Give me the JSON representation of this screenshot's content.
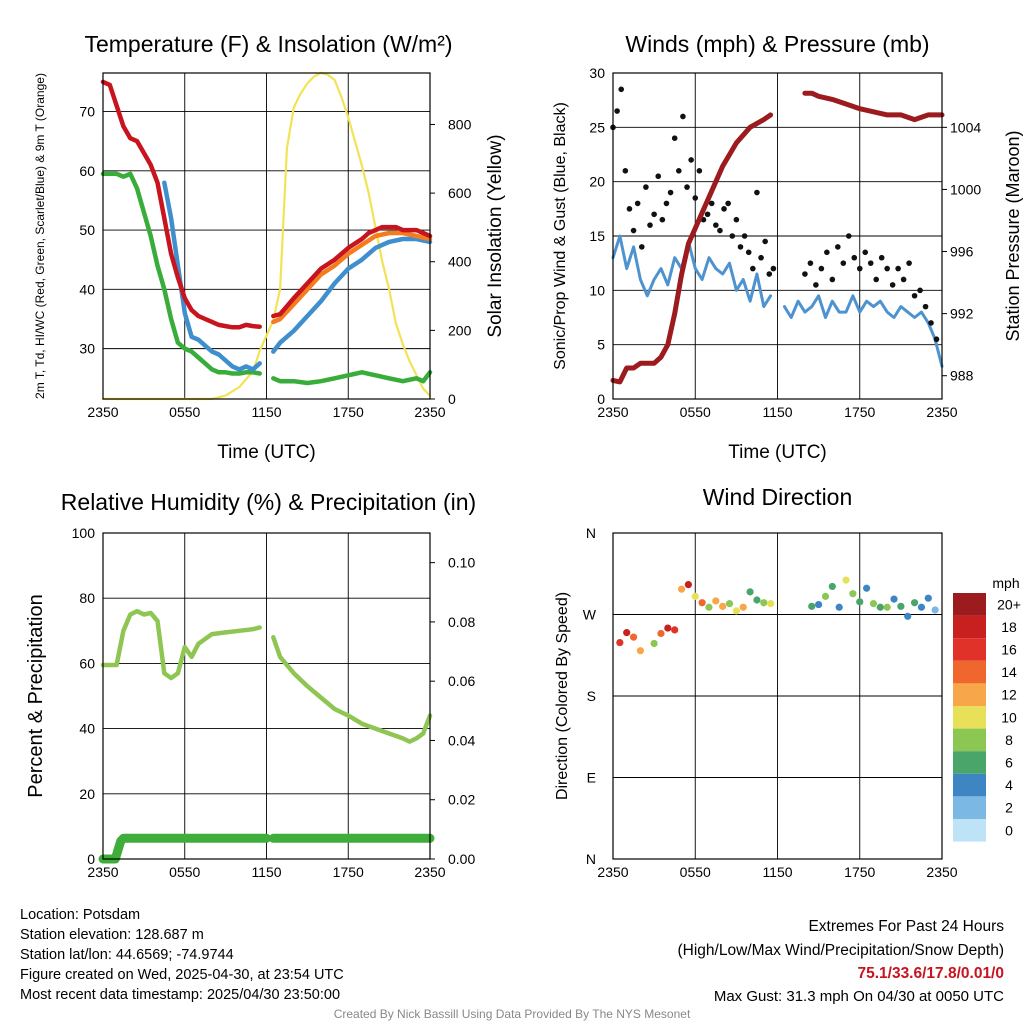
{
  "chart_data": [
    {
      "type": "line",
      "title": "Temperature (F) & Insolation (W/m²)",
      "xlabel": "Time (UTC)",
      "ylabel": "2m T, Td, HI/WC (Red, Green, Scarlet/Blue) & 9m T (Orange)",
      "ylabel2": "Solar Insolation (Yellow)",
      "xticks": [
        "2350",
        "0550",
        "1150",
        "1750",
        "2350"
      ],
      "ylim": [
        21.5,
        76.5
      ],
      "yticks": [
        30,
        40,
        50,
        60,
        70
      ],
      "y2lim": [
        0,
        950
      ],
      "y2ticks": [
        0,
        200,
        400,
        600,
        800
      ],
      "grid": true,
      "series": [
        {
          "name": "2m T",
          "color": "#c8141e",
          "axis": "left",
          "x": [
            0,
            0.5,
            1,
            1.5,
            2,
            2.5,
            3,
            3.5,
            4,
            4.5,
            5,
            5.5,
            6,
            6.5,
            7,
            7.5,
            8,
            8.5,
            9,
            9.5,
            10,
            10.5,
            11,
            11.5,
            12.5,
            13,
            14,
            15,
            16,
            17,
            18,
            19,
            19.5,
            20,
            20.5,
            21,
            21.5,
            22,
            22.5,
            23,
            23.5,
            24
          ],
          "y": [
            75,
            74.5,
            71,
            67.5,
            65.5,
            65,
            63,
            61,
            58,
            52,
            46,
            42,
            38.5,
            36.5,
            35.5,
            35,
            34.5,
            34,
            33.8,
            33.6,
            33.6,
            34,
            33.8,
            33.7,
            35.5,
            35.8,
            38.5,
            41,
            43.5,
            45,
            47,
            48.5,
            49.5,
            50,
            50.5,
            50.5,
            50.5,
            50,
            50,
            50,
            49.5,
            49
          ]
        },
        {
          "name": "9m T",
          "color": "#f57c1e",
          "axis": "left",
          "x": [
            12.5,
            13,
            14,
            15,
            16,
            17,
            18,
            19,
            20,
            21,
            22,
            23,
            24
          ],
          "y": [
            34.5,
            35,
            37.5,
            40,
            42.5,
            44,
            46,
            47.5,
            49,
            49.5,
            49.5,
            49,
            48.5
          ]
        },
        {
          "name": "WC",
          "color": "#3f8fcf",
          "axis": "left",
          "x": [
            4.5,
            5,
            5.5,
            6,
            6.5,
            7,
            7.5,
            8,
            8.5,
            9,
            9.5,
            10,
            10.5,
            11,
            11.5,
            12.5,
            13,
            14,
            15,
            16,
            17,
            18,
            19,
            20,
            21,
            22,
            23,
            24
          ],
          "y": [
            58,
            52,
            44,
            36,
            32,
            31.5,
            30.5,
            29.5,
            29,
            28,
            27,
            26.5,
            27,
            26.5,
            27.5,
            29.5,
            31,
            33,
            35.5,
            38,
            41,
            43.5,
            45,
            47,
            48,
            48.5,
            48.5,
            48
          ]
        },
        {
          "name": "Td",
          "color": "#38ad3a",
          "axis": "left",
          "x": [
            0,
            1,
            1.5,
            2,
            2.5,
            3,
            3.5,
            4,
            4.5,
            5,
            5.5,
            6,
            6.5,
            7,
            7.5,
            8,
            8.5,
            9,
            9.5,
            10,
            10.5,
            11,
            11.5,
            12.5,
            13,
            14,
            15,
            16,
            17,
            18,
            19,
            20,
            21,
            22,
            23,
            23.5,
            24
          ],
          "y": [
            59.5,
            59.5,
            59,
            59.5,
            57,
            53,
            49,
            44,
            40,
            35,
            31,
            30,
            29.5,
            28.5,
            27.5,
            26.5,
            26,
            26,
            25.8,
            25.8,
            26,
            26,
            25.8,
            25,
            24.5,
            24.5,
            24.2,
            24.5,
            25,
            25.5,
            26,
            25.5,
            25,
            24.5,
            25,
            24.5,
            26
          ]
        },
        {
          "name": "Solar Insolation",
          "color": "#f2e356",
          "axis": "right",
          "x": [
            0,
            4,
            8,
            9,
            10,
            11,
            11.5,
            12.5,
            13,
            13.5,
            14,
            14.5,
            15,
            15.5,
            16,
            16.5,
            17,
            17.5,
            18,
            18.5,
            19,
            19.5,
            20,
            20.5,
            21,
            21.5,
            22,
            22.5,
            23,
            23.5,
            24
          ],
          "y": [
            0,
            0,
            0,
            10,
            35,
            80,
            140,
            230,
            320,
            730,
            850,
            890,
            920,
            940,
            950,
            945,
            930,
            880,
            820,
            750,
            680,
            600,
            500,
            400,
            320,
            220,
            160,
            110,
            70,
            30,
            10
          ]
        }
      ]
    },
    {
      "type": "line",
      "title": "Winds (mph) & Pressure (mb)",
      "xlabel": "Time (UTC)",
      "ylabel": "Sonic/Prop Wind & Gust (Blue, Black)",
      "ylabel2": "Station Pressure (Maroon)",
      "xticks": [
        "2350",
        "0550",
        "1150",
        "1750",
        "2350"
      ],
      "ylim": [
        0,
        30
      ],
      "yticks": [
        0,
        5,
        10,
        15,
        20,
        25,
        30
      ],
      "y2lim": [
        986.5,
        1007.5
      ],
      "y2ticks": [
        988,
        992,
        996,
        1000,
        1004
      ],
      "grid": true,
      "series": [
        {
          "name": "Wind",
          "color": "#4e93cf",
          "axis": "left",
          "x": [
            0,
            0.5,
            1,
            1.5,
            2,
            2.5,
            3,
            3.5,
            4,
            4.5,
            5,
            5.5,
            6,
            6.5,
            7,
            7.5,
            8,
            8.5,
            9,
            9.5,
            10,
            10.5,
            11,
            11.5,
            12.5,
            13,
            13.5,
            14,
            14.5,
            15,
            15.5,
            16,
            16.5,
            17,
            17.5,
            18,
            18.5,
            19,
            19.5,
            20,
            20.5,
            21,
            21.5,
            22,
            22.5,
            23,
            23.5,
            24
          ],
          "y": [
            13,
            15,
            12,
            14,
            11,
            9.5,
            11,
            12,
            10.5,
            13,
            12,
            14.5,
            12,
            11,
            13,
            12,
            11.5,
            12.5,
            10,
            11,
            9,
            11.5,
            8.5,
            9.5,
            8.5,
            7.5,
            9,
            8,
            8.5,
            9.5,
            7.5,
            9,
            8,
            8,
            9.5,
            8,
            9,
            8.5,
            9,
            8,
            7.5,
            8.5,
            8,
            7.5,
            8,
            7,
            5.5,
            3
          ]
        },
        {
          "name": "Station Pressure",
          "color": "#9b1b1f",
          "axis": "right",
          "x": [
            0,
            0.5,
            1,
            1.5,
            2,
            3,
            3.5,
            4,
            4.5,
            5,
            5.5,
            6,
            6.5,
            7,
            8,
            9,
            10,
            11,
            11.5,
            14,
            14.5,
            15,
            16,
            17,
            18,
            19,
            20,
            21,
            22,
            23,
            24
          ],
          "y": [
            987.7,
            987.6,
            988.5,
            988.5,
            988.8,
            988.8,
            989.2,
            990,
            992,
            994.5,
            996.5,
            997.5,
            998.5,
            999.5,
            1001.5,
            1003,
            1004,
            1004.5,
            1004.8,
            1006.2,
            1006.2,
            1006,
            1005.8,
            1005.5,
            1005.2,
            1005,
            1004.8,
            1004.8,
            1004.5,
            1004.8,
            1004.8
          ]
        },
        {
          "name": "Gust",
          "color": "#111111",
          "axis": "left",
          "kind": "scatter",
          "x": [
            0,
            0.3,
            0.6,
            0.9,
            1.2,
            1.5,
            1.8,
            2.1,
            2.4,
            2.7,
            3,
            3.3,
            3.6,
            3.9,
            4.2,
            4.5,
            4.8,
            5.1,
            5.4,
            5.7,
            6,
            6.3,
            6.6,
            6.9,
            7.2,
            7.5,
            7.8,
            8.1,
            8.4,
            8.7,
            9,
            9.3,
            9.6,
            9.9,
            10.2,
            10.5,
            10.8,
            11.1,
            11.4,
            11.7,
            14,
            14.4,
            14.8,
            15.2,
            15.6,
            16,
            16.4,
            16.8,
            17.2,
            17.6,
            18,
            18.4,
            18.8,
            19.2,
            19.6,
            20,
            20.4,
            20.8,
            21.2,
            21.6,
            22,
            22.4,
            22.8,
            23.2,
            23.6
          ],
          "y": [
            25,
            26.5,
            28.5,
            21,
            17.5,
            15.5,
            18,
            14,
            19.5,
            16,
            17,
            20.5,
            16.5,
            18,
            19,
            24,
            21,
            26,
            19.5,
            22,
            18.5,
            21,
            16.5,
            17,
            18,
            16,
            15.5,
            17.5,
            18,
            15,
            16.5,
            14,
            15,
            13.5,
            12,
            19,
            13,
            14.5,
            11.5,
            12,
            11.5,
            12.5,
            10.5,
            12,
            13.5,
            11,
            14,
            12.5,
            15,
            13,
            12,
            13.5,
            12.5,
            11,
            13,
            12,
            10.5,
            12,
            11,
            12.5,
            9.5,
            10,
            8.5,
            7,
            5.5
          ]
        }
      ]
    },
    {
      "type": "line",
      "title": "Relative Humidity (%) & Precipitation (in)",
      "xlabel": "",
      "ylabel": "Percent & Precipitation",
      "xticks": [
        "2350",
        "0550",
        "1150",
        "1750",
        "2350"
      ],
      "ylim": [
        0,
        100
      ],
      "yticks": [
        0,
        20,
        40,
        60,
        80,
        100
      ],
      "y2lim": [
        0,
        0.11
      ],
      "y2ticks": [
        "0.00",
        "0.02",
        "0.04",
        "0.06",
        "0.08",
        "0.10"
      ],
      "grid": true,
      "series": [
        {
          "name": "RH",
          "color": "#8fc653",
          "axis": "left",
          "x": [
            0,
            0.5,
            1,
            1.5,
            2,
            2.5,
            3,
            3.5,
            4,
            4.5,
            5,
            5.5,
            6,
            6.5,
            7,
            8,
            9,
            10,
            11,
            11.5,
            12.5,
            13,
            14,
            15,
            16,
            17,
            18,
            19,
            20,
            21,
            22,
            22.5,
            23,
            23.5,
            24
          ],
          "y": [
            59.5,
            59.5,
            59.5,
            70,
            75,
            76,
            75,
            75.5,
            73,
            57,
            55.5,
            57,
            65,
            62,
            66,
            69,
            69.5,
            70,
            70.5,
            71,
            68,
            62,
            57,
            53,
            49.5,
            46,
            44,
            41.5,
            40,
            38.5,
            37,
            36,
            37,
            38.5,
            44
          ]
        },
        {
          "name": "Precipitation",
          "color": "#3fad3a",
          "axis": "right",
          "x": [
            0,
            0.9,
            1.1,
            1.3,
            1.5,
            12,
            12.5,
            24
          ],
          "y": [
            0,
            0,
            0.003,
            0.006,
            0.007,
            0.007,
            0.007,
            0.007
          ]
        }
      ]
    },
    {
      "type": "scatter",
      "title": "Wind Direction",
      "ylabel": "Direction (Colored By Speed)",
      "xticks": [
        "2350",
        "0550",
        "1150",
        "1750",
        "2350"
      ],
      "yticks": [
        "N",
        "E",
        "S",
        "W",
        "N"
      ],
      "ylim": [
        0,
        360
      ],
      "grid": true,
      "colorbar": {
        "title": "mph",
        "labels": [
          "20+",
          "18",
          "16",
          "14",
          "12",
          "10",
          "8",
          "6",
          "4",
          "2",
          "0"
        ],
        "colors": [
          "#9b1b1f",
          "#c8201e",
          "#e03228",
          "#f0672d",
          "#f7a74a",
          "#e8e059",
          "#8cc653",
          "#4aa56a",
          "#3e85c4",
          "#7cb8e4",
          "#bfe3f6"
        ]
      },
      "x": [
        0.5,
        1.0,
        1.5,
        2.0,
        3.0,
        3.5,
        4.0,
        4.5,
        5.0,
        5.5,
        6.0,
        6.5,
        7.0,
        7.5,
        8.0,
        8.5,
        9.0,
        9.5,
        10.0,
        10.5,
        11.0,
        11.5,
        14.5,
        15.0,
        15.5,
        16.0,
        16.5,
        17.0,
        17.5,
        18.0,
        18.5,
        19.0,
        19.5,
        20.0,
        20.5,
        21.0,
        21.5,
        22.0,
        22.5,
        23.0,
        23.5
      ],
      "y": [
        239,
        250,
        245,
        230,
        238,
        249,
        255,
        253,
        298,
        303,
        290,
        283,
        278,
        285,
        279,
        282,
        274,
        278,
        295,
        286,
        283,
        282,
        279,
        281,
        290,
        301,
        278,
        308,
        293,
        284,
        299,
        282,
        278,
        278,
        287,
        279,
        268,
        283,
        278,
        288,
        275
      ],
      "speed": [
        16,
        19,
        14,
        12,
        9,
        15,
        18,
        16,
        13,
        19,
        10,
        14,
        9,
        12,
        13,
        8,
        10,
        12,
        7,
        6,
        9,
        10,
        7,
        5,
        9,
        6,
        5,
        10,
        8,
        7,
        5,
        8,
        6,
        9,
        4,
        6,
        5,
        7,
        4,
        5,
        3
      ]
    }
  ],
  "footer": {
    "location": "Location: Potsdam",
    "elevation": "Station elevation: 128.687 m",
    "latlon": "Station lat/lon: 44.6569; -74.9744",
    "created": "Figure created on Wed, 2025-04-30, at 23:54 UTC",
    "recent": "Most recent data timestamp: 2025/04/30 23:50:00",
    "extremes_title": "Extremes For Past 24 Hours",
    "extremes_sub": "(High/Low/Max Wind/Precipitation/Snow Depth)",
    "extremes_values": "75.1/33.6/17.8/0.01/0",
    "extremes_color": "#c8141e",
    "max_gust": "Max Gust: 31.3 mph On 04/30 at 0050 UTC",
    "credit": "Created By Nick Bassill Using Data Provided By The NYS Mesonet"
  }
}
